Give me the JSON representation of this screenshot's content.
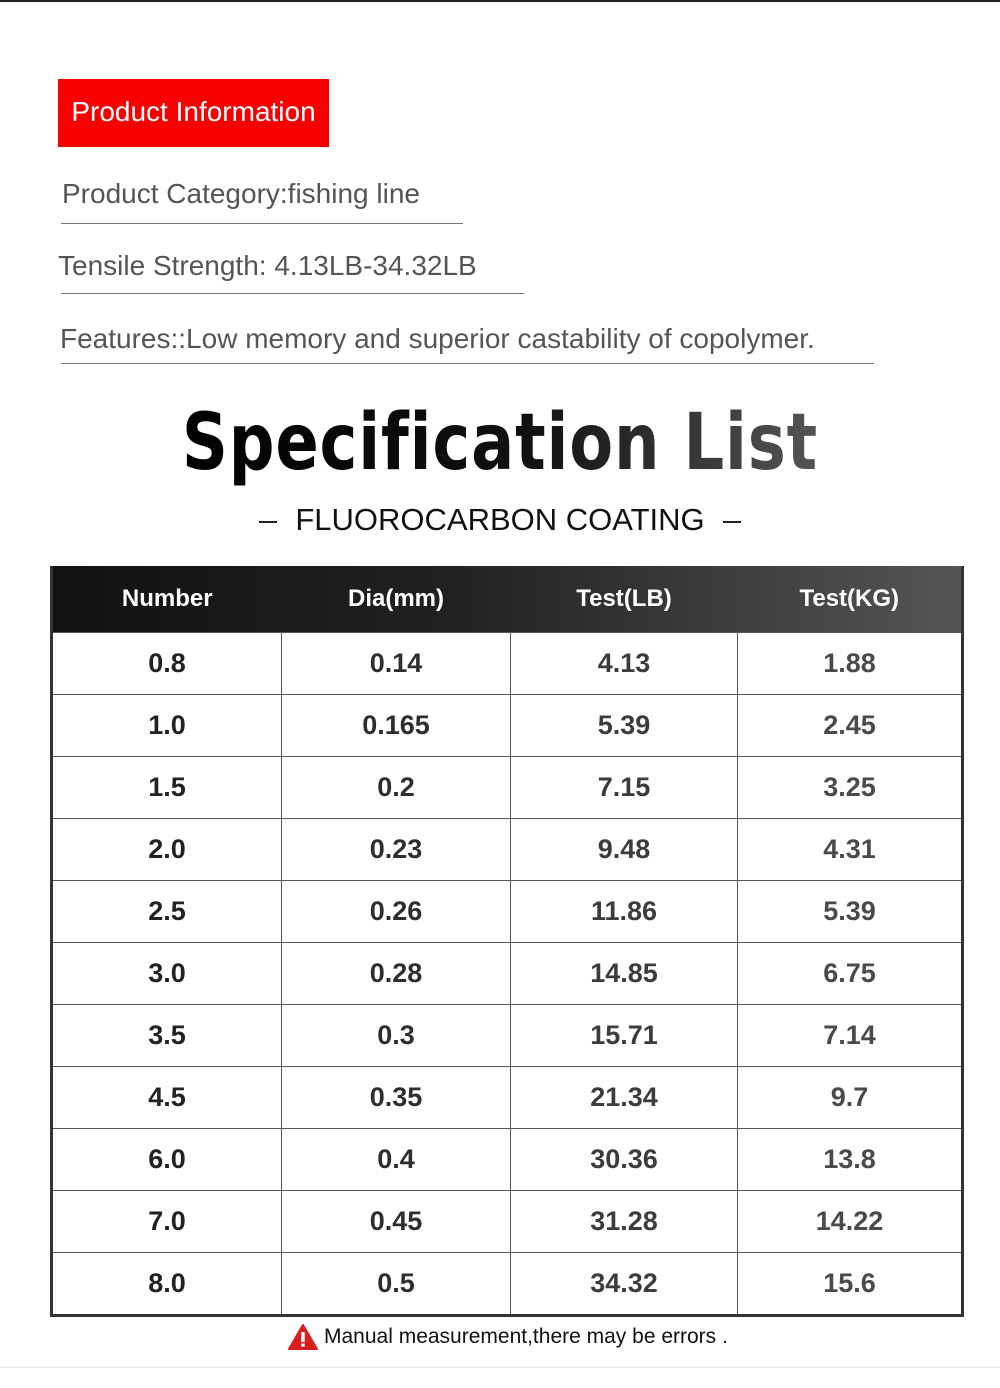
{
  "badge": "Product Information",
  "info": {
    "category": "Product Category:fishing line",
    "tensile": "Tensile Strength: 4.13LB-34.32LB",
    "features": "Features::Low memory and superior castability of copolymer."
  },
  "title": "Specification List",
  "subtitle": "FLUOROCARBON COATING",
  "table": {
    "headers": [
      "Number",
      "Dia(mm)",
      "Test(LB)",
      "Test(KG)"
    ],
    "rows": [
      [
        "0.8",
        "0.14",
        "4.13",
        "1.88"
      ],
      [
        "1.0",
        "0.165",
        "5.39",
        "2.45"
      ],
      [
        "1.5",
        "0.2",
        "7.15",
        "3.25"
      ],
      [
        "2.0",
        "0.23",
        "9.48",
        "4.31"
      ],
      [
        "2.5",
        "0.26",
        "11.86",
        "5.39"
      ],
      [
        "3.0",
        "0.28",
        "14.85",
        "6.75"
      ],
      [
        "3.5",
        "0.3",
        "15.71",
        "7.14"
      ],
      [
        "4.5",
        "0.35",
        "21.34",
        "9.7"
      ],
      [
        "6.0",
        "0.4",
        "30.36",
        "13.8"
      ],
      [
        "7.0",
        "0.45",
        "31.28",
        "14.22"
      ],
      [
        "8.0",
        "0.5",
        "34.32",
        "15.6"
      ]
    ]
  },
  "note": {
    "icon": "warning-icon",
    "text": "Manual measurement,there may be errors ."
  },
  "colors": {
    "badge": "#f60000",
    "warning": "#d81e1e"
  }
}
